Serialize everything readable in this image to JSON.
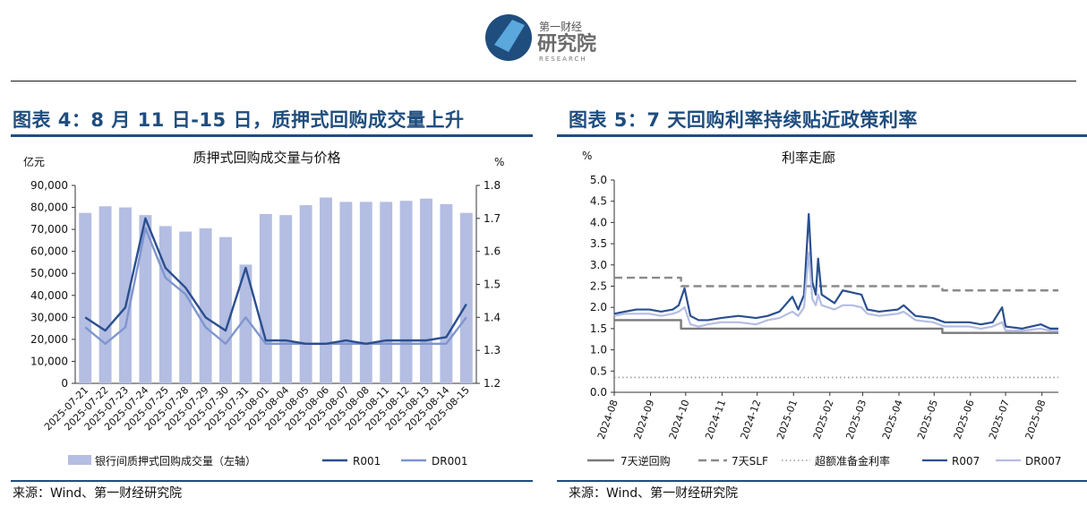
{
  "header": {
    "logo_small": "第一财经",
    "logo_big": "研究院",
    "logo_sub": "RESEARCH"
  },
  "panel_left": {
    "title": "图表 4：8 月 11 日-15 日，质押式回购成交量上升",
    "source": "来源：Wind、第一财经研究院"
  },
  "panel_right": {
    "title": "图表 5：7 天回购利率持续贴近政策利率",
    "source": "来源：Wind、第一财经研究院"
  },
  "colors": {
    "brand_blue": "#1f4d7e",
    "bar": "#b4bde2",
    "r001": "#2a4f8f",
    "dr001": "#7f95d0",
    "reverse_repo": "#7a7a7a",
    "slf": "#8a8a8a",
    "ioer": "#9a9a9a",
    "r007": "#2a4f8f",
    "dr007": "#b4bde2"
  },
  "chart_data": [
    {
      "type": "bar+line",
      "title": "质押式回购成交量与价格",
      "ylabel_left": "亿元",
      "ylabel_right": "%",
      "ylim_left": [
        0,
        90000
      ],
      "ylim_right": [
        1.2,
        1.8
      ],
      "yticks_left": [
        "0",
        "10,000",
        "20,000",
        "30,000",
        "40,000",
        "50,000",
        "60,000",
        "70,000",
        "80,000",
        "90,000"
      ],
      "yticks_right": [
        "1.2",
        "1.3",
        "1.4",
        "1.5",
        "1.6",
        "1.7",
        "1.8"
      ],
      "categories": [
        "2025-07-21",
        "2025-07-22",
        "2025-07-23",
        "2025-07-24",
        "2025-07-25",
        "2025-07-28",
        "2025-07-29",
        "2025-07-30",
        "2025-07-31",
        "2025-08-01",
        "2025-08-04",
        "2025-08-05",
        "2025-08-06",
        "2025-08-07",
        "2025-08-08",
        "2025-08-11",
        "2025-08-12",
        "2025-08-13",
        "2025-08-14",
        "2025-08-15"
      ],
      "series": [
        {
          "name": "银行间质押式回购成交量（左轴）",
          "axis": "left",
          "kind": "bar",
          "values": [
            77500,
            80500,
            80000,
            76500,
            71500,
            69000,
            70500,
            66500,
            54000,
            77000,
            76500,
            81000,
            84500,
            82500,
            82500,
            82500,
            83000,
            84000,
            81500,
            77500
          ]
        },
        {
          "name": "R001",
          "axis": "right",
          "kind": "line",
          "values": [
            1.4,
            1.36,
            1.43,
            1.7,
            1.55,
            1.49,
            1.4,
            1.36,
            1.55,
            1.33,
            1.33,
            1.32,
            1.32,
            1.33,
            1.32,
            1.33,
            1.33,
            1.33,
            1.34,
            1.44
          ]
        },
        {
          "name": "DR001",
          "axis": "right",
          "kind": "line",
          "values": [
            1.37,
            1.32,
            1.37,
            1.67,
            1.52,
            1.47,
            1.37,
            1.32,
            1.4,
            1.32,
            1.32,
            1.32,
            1.32,
            1.32,
            1.32,
            1.32,
            1.32,
            1.32,
            1.32,
            1.4
          ]
        }
      ]
    },
    {
      "type": "line",
      "title": "利率走廊",
      "ylabel": "%",
      "ylim": [
        0,
        5
      ],
      "yticks": [
        "0.0",
        "0.5",
        "1.0",
        "1.5",
        "2.0",
        "2.5",
        "3.0",
        "3.5",
        "4.0",
        "4.5",
        "5.0"
      ],
      "x_range": [
        "2024-08-01",
        "2025-08-15"
      ],
      "xticks": [
        "2024-08",
        "2024-09",
        "2024-10",
        "2024-11",
        "2024-12",
        "2025-01",
        "2025-02",
        "2025-03",
        "2025-04",
        "2025-05",
        "2025-06",
        "2025-07",
        "2025-08"
      ],
      "series": [
        {
          "name": "7天逆回购",
          "style": "solid",
          "points": [
            [
              "2024-08-01",
              1.7
            ],
            [
              "2024-09-27",
              1.7
            ],
            [
              "2024-09-27",
              1.5
            ],
            [
              "2025-05-08",
              1.5
            ],
            [
              "2025-05-08",
              1.4
            ],
            [
              "2025-08-15",
              1.4
            ]
          ]
        },
        {
          "name": "7天SLF",
          "style": "dashed",
          "points": [
            [
              "2024-08-01",
              2.7
            ],
            [
              "2024-09-27",
              2.7
            ],
            [
              "2024-09-27",
              2.5
            ],
            [
              "2025-05-08",
              2.5
            ],
            [
              "2025-05-08",
              2.4
            ],
            [
              "2025-08-15",
              2.4
            ]
          ]
        },
        {
          "name": "超额准备金利率",
          "style": "dotted",
          "points": [
            [
              "2024-08-01",
              0.35
            ],
            [
              "2025-08-15",
              0.35
            ]
          ]
        },
        {
          "name": "R007",
          "style": "solid",
          "points": [
            [
              "2024-08-01",
              1.85
            ],
            [
              "2024-08-10",
              1.9
            ],
            [
              "2024-08-20",
              1.95
            ],
            [
              "2024-08-31",
              1.95
            ],
            [
              "2024-09-10",
              1.9
            ],
            [
              "2024-09-20",
              1.95
            ],
            [
              "2024-09-25",
              2.05
            ],
            [
              "2024-09-30",
              2.45
            ],
            [
              "2024-10-05",
              1.8
            ],
            [
              "2024-10-12",
              1.7
            ],
            [
              "2024-10-20",
              1.7
            ],
            [
              "2024-10-31",
              1.75
            ],
            [
              "2024-11-15",
              1.8
            ],
            [
              "2024-11-30",
              1.75
            ],
            [
              "2024-12-10",
              1.8
            ],
            [
              "2024-12-20",
              1.9
            ],
            [
              "2024-12-31",
              2.25
            ],
            [
              "2025-01-05",
              1.95
            ],
            [
              "2025-01-10",
              2.3
            ],
            [
              "2025-01-14",
              4.2
            ],
            [
              "2025-01-17",
              2.6
            ],
            [
              "2025-01-20",
              2.3
            ],
            [
              "2025-01-22",
              3.15
            ],
            [
              "2025-01-25",
              2.3
            ],
            [
              "2025-02-05",
              2.1
            ],
            [
              "2025-02-12",
              2.4
            ],
            [
              "2025-02-20",
              2.35
            ],
            [
              "2025-02-28",
              2.3
            ],
            [
              "2025-03-05",
              1.95
            ],
            [
              "2025-03-15",
              1.9
            ],
            [
              "2025-03-31",
              1.95
            ],
            [
              "2025-04-05",
              2.05
            ],
            [
              "2025-04-15",
              1.8
            ],
            [
              "2025-04-30",
              1.75
            ],
            [
              "2025-05-10",
              1.65
            ],
            [
              "2025-05-20",
              1.65
            ],
            [
              "2025-05-31",
              1.65
            ],
            [
              "2025-06-10",
              1.6
            ],
            [
              "2025-06-20",
              1.65
            ],
            [
              "2025-06-28",
              2.0
            ],
            [
              "2025-07-01",
              1.55
            ],
            [
              "2025-07-15",
              1.5
            ],
            [
              "2025-07-31",
              1.6
            ],
            [
              "2025-08-08",
              1.5
            ],
            [
              "2025-08-15",
              1.5
            ]
          ]
        },
        {
          "name": "DR007",
          "style": "solid",
          "points": [
            [
              "2024-08-01",
              1.8
            ],
            [
              "2024-08-10",
              1.85
            ],
            [
              "2024-08-20",
              1.85
            ],
            [
              "2024-08-31",
              1.85
            ],
            [
              "2024-09-10",
              1.8
            ],
            [
              "2024-09-20",
              1.85
            ],
            [
              "2024-09-25",
              1.9
            ],
            [
              "2024-09-30",
              2.0
            ],
            [
              "2024-10-05",
              1.6
            ],
            [
              "2024-10-12",
              1.55
            ],
            [
              "2024-10-20",
              1.6
            ],
            [
              "2024-10-31",
              1.65
            ],
            [
              "2024-11-15",
              1.65
            ],
            [
              "2024-11-30",
              1.6
            ],
            [
              "2024-12-10",
              1.7
            ],
            [
              "2024-12-20",
              1.75
            ],
            [
              "2024-12-31",
              1.9
            ],
            [
              "2025-01-05",
              1.8
            ],
            [
              "2025-01-10",
              2.0
            ],
            [
              "2025-01-14",
              3.3
            ],
            [
              "2025-01-17",
              2.2
            ],
            [
              "2025-01-20",
              2.05
            ],
            [
              "2025-01-22",
              2.3
            ],
            [
              "2025-01-25",
              2.05
            ],
            [
              "2025-02-05",
              1.95
            ],
            [
              "2025-02-12",
              2.05
            ],
            [
              "2025-02-20",
              2.05
            ],
            [
              "2025-02-28",
              2.0
            ],
            [
              "2025-03-05",
              1.85
            ],
            [
              "2025-03-15",
              1.8
            ],
            [
              "2025-03-31",
              1.85
            ],
            [
              "2025-04-05",
              1.9
            ],
            [
              "2025-04-15",
              1.7
            ],
            [
              "2025-04-30",
              1.65
            ],
            [
              "2025-05-10",
              1.55
            ],
            [
              "2025-05-20",
              1.55
            ],
            [
              "2025-05-31",
              1.55
            ],
            [
              "2025-06-10",
              1.5
            ],
            [
              "2025-06-20",
              1.55
            ],
            [
              "2025-06-28",
              1.65
            ],
            [
              "2025-07-01",
              1.45
            ],
            [
              "2025-07-15",
              1.45
            ],
            [
              "2025-07-31",
              1.5
            ],
            [
              "2025-08-08",
              1.45
            ],
            [
              "2025-08-15",
              1.45
            ]
          ]
        }
      ]
    }
  ]
}
